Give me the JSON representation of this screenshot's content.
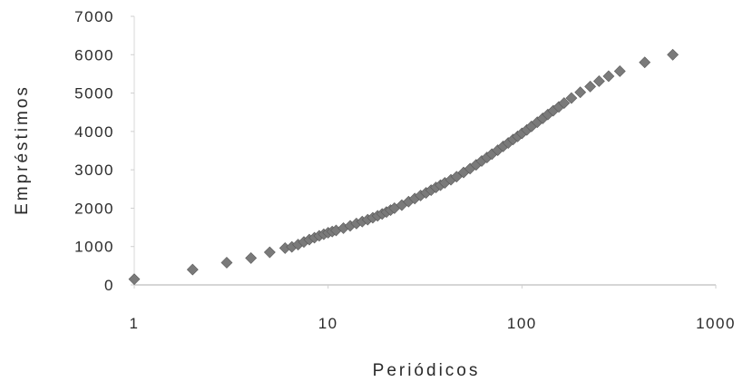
{
  "chart_data": {
    "type": "scatter",
    "xlabel": "Periódicos",
    "ylabel": "Empréstimos",
    "xscale": "log",
    "xlim": [
      1,
      1000
    ],
    "ylim": [
      0,
      7000
    ],
    "x_ticks": [
      1,
      10,
      100,
      1000
    ],
    "x_tick_labels": [
      "1",
      "10",
      "100",
      "1000"
    ],
    "y_ticks": [
      0,
      1000,
      2000,
      3000,
      4000,
      5000,
      6000,
      7000
    ],
    "y_tick_labels": [
      "0",
      "1000",
      "2000",
      "3000",
      "4000",
      "5000",
      "6000",
      "7000"
    ],
    "grid": false,
    "marker": "diamond",
    "marker_color": "#7a7a7a",
    "series": [
      {
        "points": [
          [
            1,
            150
          ],
          [
            2,
            400
          ],
          [
            3,
            580
          ],
          [
            4,
            700
          ],
          [
            5,
            850
          ],
          [
            6,
            960
          ],
          [
            6.5,
            990
          ],
          [
            7,
            1050
          ],
          [
            7.5,
            1120
          ],
          [
            8,
            1180
          ],
          [
            8.5,
            1230
          ],
          [
            9,
            1280
          ],
          [
            9.5,
            1320
          ],
          [
            10,
            1360
          ],
          [
            10.5,
            1390
          ],
          [
            11,
            1420
          ],
          [
            12,
            1480
          ],
          [
            13,
            1540
          ],
          [
            14,
            1600
          ],
          [
            15,
            1650
          ],
          [
            16,
            1700
          ],
          [
            17,
            1750
          ],
          [
            18,
            1800
          ],
          [
            19,
            1850
          ],
          [
            20,
            1900
          ],
          [
            21,
            1950
          ],
          [
            22,
            2000
          ],
          [
            24,
            2080
          ],
          [
            26,
            2170
          ],
          [
            28,
            2250
          ],
          [
            30,
            2330
          ],
          [
            32,
            2400
          ],
          [
            34,
            2470
          ],
          [
            36,
            2540
          ],
          [
            38,
            2600
          ],
          [
            40,
            2660
          ],
          [
            43,
            2740
          ],
          [
            46,
            2820
          ],
          [
            50,
            2930
          ],
          [
            54,
            3030
          ],
          [
            58,
            3130
          ],
          [
            62,
            3230
          ],
          [
            66,
            3320
          ],
          [
            70,
            3410
          ],
          [
            75,
            3510
          ],
          [
            80,
            3610
          ],
          [
            85,
            3700
          ],
          [
            90,
            3790
          ],
          [
            95,
            3870
          ],
          [
            100,
            3950
          ],
          [
            106,
            4040
          ],
          [
            112,
            4130
          ],
          [
            120,
            4240
          ],
          [
            128,
            4340
          ],
          [
            136,
            4440
          ],
          [
            145,
            4540
          ],
          [
            155,
            4640
          ],
          [
            165,
            4740
          ],
          [
            180,
            4870
          ],
          [
            200,
            5020
          ],
          [
            225,
            5170
          ],
          [
            250,
            5310
          ],
          [
            280,
            5440
          ],
          [
            320,
            5570
          ],
          [
            430,
            5800
          ],
          [
            600,
            6000
          ]
        ]
      }
    ]
  }
}
